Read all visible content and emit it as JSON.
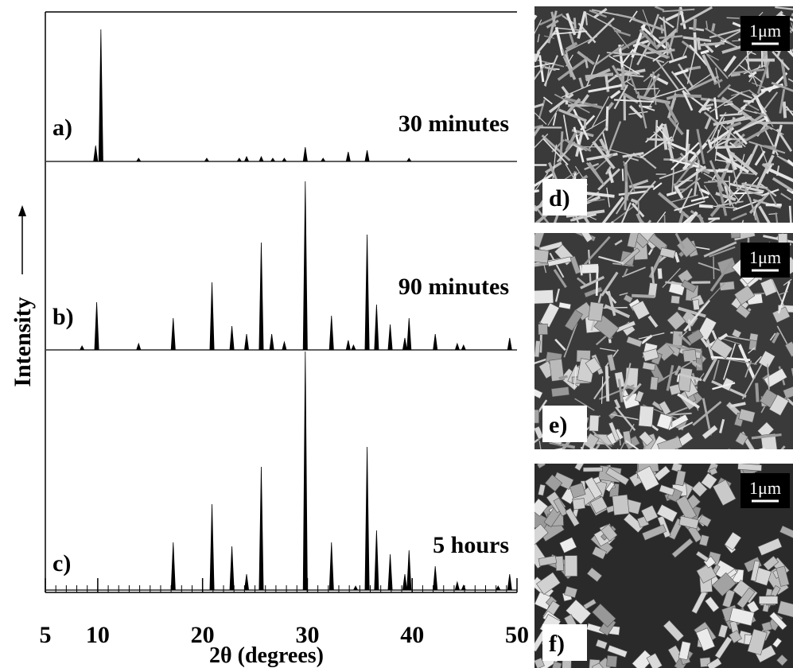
{
  "chart_data": {
    "type": "line",
    "xlabel": "2θ (degrees)",
    "ylabel": "Intensity",
    "xlim": [
      5,
      50
    ],
    "xticks": [
      5,
      10,
      20,
      30,
      40,
      50
    ],
    "xminor_step": 1,
    "color": "#000000",
    "series": [
      {
        "label": "a)",
        "name": "30 minutes",
        "x": [
          9.8,
          10.3,
          13.9,
          20.4,
          23.5,
          24.2,
          25.6,
          26.7,
          27.8,
          29.8,
          31.5,
          33.9,
          35.7,
          39.7
        ],
        "values": [
          20,
          166,
          4,
          4,
          4,
          6,
          6,
          4,
          4,
          18,
          4,
          12,
          14,
          4
        ]
      },
      {
        "label": "b)",
        "name": "90 minutes",
        "x": [
          8.5,
          9.9,
          13.9,
          17.2,
          20.9,
          22.8,
          24.2,
          25.6,
          26.6,
          27.8,
          29.8,
          32.3,
          33.9,
          34.4,
          35.7,
          36.6,
          37.9,
          39.3,
          39.7,
          42.2,
          44.3,
          44.9,
          49.3
        ],
        "values": [
          5,
          60,
          8,
          40,
          85,
          30,
          20,
          135,
          20,
          10,
          212,
          43,
          12,
          6,
          145,
          57,
          32,
          15,
          40,
          20,
          8,
          6,
          15
        ]
      },
      {
        "label": "c)",
        "name": "5 hours",
        "x": [
          17.2,
          20.9,
          22.8,
          24.2,
          25.6,
          29.8,
          32.3,
          34.6,
          35.7,
          36.6,
          37.9,
          39.3,
          39.7,
          42.2,
          44.3,
          44.9,
          48.2,
          49.3
        ],
        "values": [
          60,
          108,
          55,
          20,
          155,
          300,
          60,
          5,
          180,
          75,
          45,
          20,
          50,
          30,
          10,
          6,
          5,
          20
        ]
      }
    ]
  },
  "images": [
    {
      "label": "d)",
      "scale": "1μm"
    },
    {
      "label": "e)",
      "scale": "1μm"
    },
    {
      "label": "f)",
      "scale": "1μm"
    }
  ]
}
